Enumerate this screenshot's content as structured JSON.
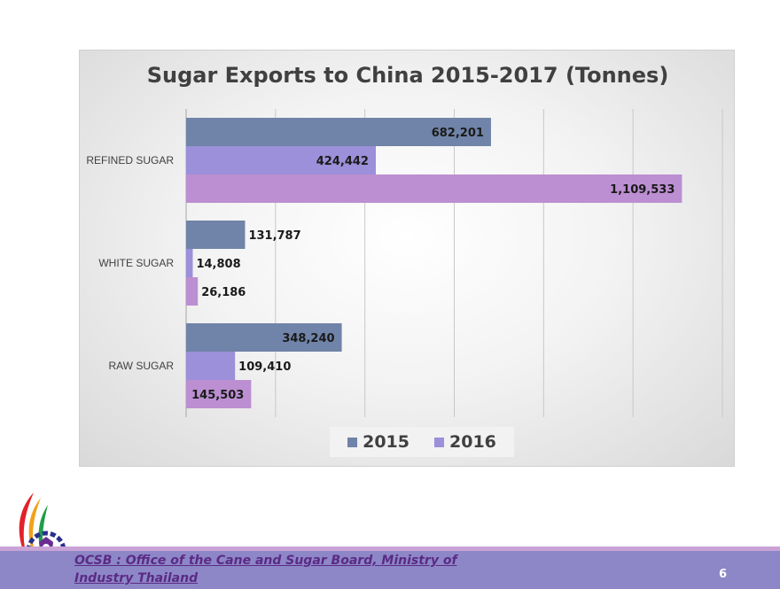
{
  "chart_data": {
    "type": "bar",
    "orientation": "horizontal",
    "title": "Sugar Exports to China 2015-2017 (Tonnes)",
    "categories": [
      "REFINED SUGAR",
      "WHITE SUGAR",
      "RAW SUGAR"
    ],
    "series": [
      {
        "name": "2015",
        "color": "#7083a8",
        "values": [
          682201,
          131787,
          348240
        ]
      },
      {
        "name": "2016",
        "color": "#9b90d9",
        "values": [
          424442,
          14808,
          109410
        ]
      },
      {
        "color": "#bb8fd1",
        "values": [
          1109533,
          26186,
          145503
        ]
      }
    ],
    "data_labels": [
      [
        "682,201",
        "131,787",
        "348,240"
      ],
      [
        "424,442",
        "14,808",
        "109,410"
      ],
      [
        "1,109,533",
        "26,186",
        "145,503"
      ]
    ],
    "xlim": [
      0,
      1200000
    ],
    "grid": true,
    "legend_position": "bottom"
  },
  "footer": {
    "text": "OCSB : Office of the Cane and Sugar Board, Ministry of Industry Thailand",
    "page_number": "6"
  },
  "colors": {
    "footer_bar": "#8d87c7",
    "footer_text": "#5b2a86"
  }
}
